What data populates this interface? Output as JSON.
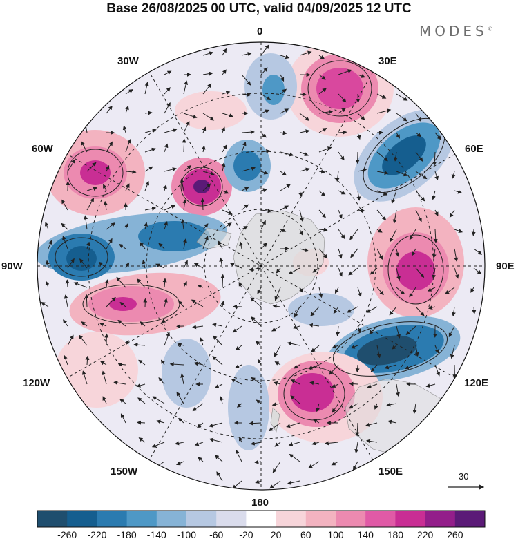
{
  "title": "Base 26/08/2025 00 UTC, valid 04/09/2025 12 UTC",
  "brand": "MODES",
  "brand_mark": "©",
  "longitude_labels": {
    "lon_0": "0",
    "lon_30e": "30E",
    "lon_60e": "60E",
    "lon_90e": "90E",
    "lon_120e": "120E",
    "lon_150e": "150E",
    "lon_180": "180",
    "lon_150w": "150W",
    "lon_120w": "120W",
    "lon_90w": "90W",
    "lon_60w": "60W",
    "lon_30w": "30W"
  },
  "vector_reference": {
    "value": "30",
    "icon": "reference-arrow-icon"
  },
  "colorbar": {
    "ticks": [
      "-260",
      "-220",
      "-180",
      "-140",
      "-100",
      "-60",
      "-20",
      "20",
      "60",
      "100",
      "140",
      "180",
      "220",
      "260"
    ],
    "colors": [
      "#1f4e6e",
      "#155e8f",
      "#2b7bb0",
      "#4e98c6",
      "#86b3d6",
      "#b6c8e2",
      "#dadcec",
      "#ffffff",
      "#f7d5da",
      "#f3b3c0",
      "#ec8ab0",
      "#e05aa6",
      "#c92e94",
      "#931e8a",
      "#5b1a77"
    ]
  },
  "map": {
    "projection": "south-polar-stereographic",
    "anomaly_centers": [
      {
        "lon": "30E",
        "sign": "positive",
        "value": 200
      },
      {
        "lon": "55E",
        "sign": "negative",
        "value": -220
      },
      {
        "lon": "60W",
        "sign": "positive",
        "value": 180
      },
      {
        "lon": "40W",
        "sign": "positive",
        "value": 220
      },
      {
        "lon": "10W",
        "sign": "negative",
        "value": -140
      },
      {
        "lon": "90W",
        "sign": "negative",
        "value": -180
      },
      {
        "lon": "70W",
        "sign": "negative",
        "value": -160
      },
      {
        "lon": "90E",
        "sign": "positive",
        "value": 200
      },
      {
        "lon": "115E",
        "sign": "negative",
        "value": -260
      },
      {
        "lon": "150E",
        "sign": "positive",
        "value": 180
      },
      {
        "lon": "110W",
        "sign": "positive",
        "value": 160
      }
    ]
  }
}
